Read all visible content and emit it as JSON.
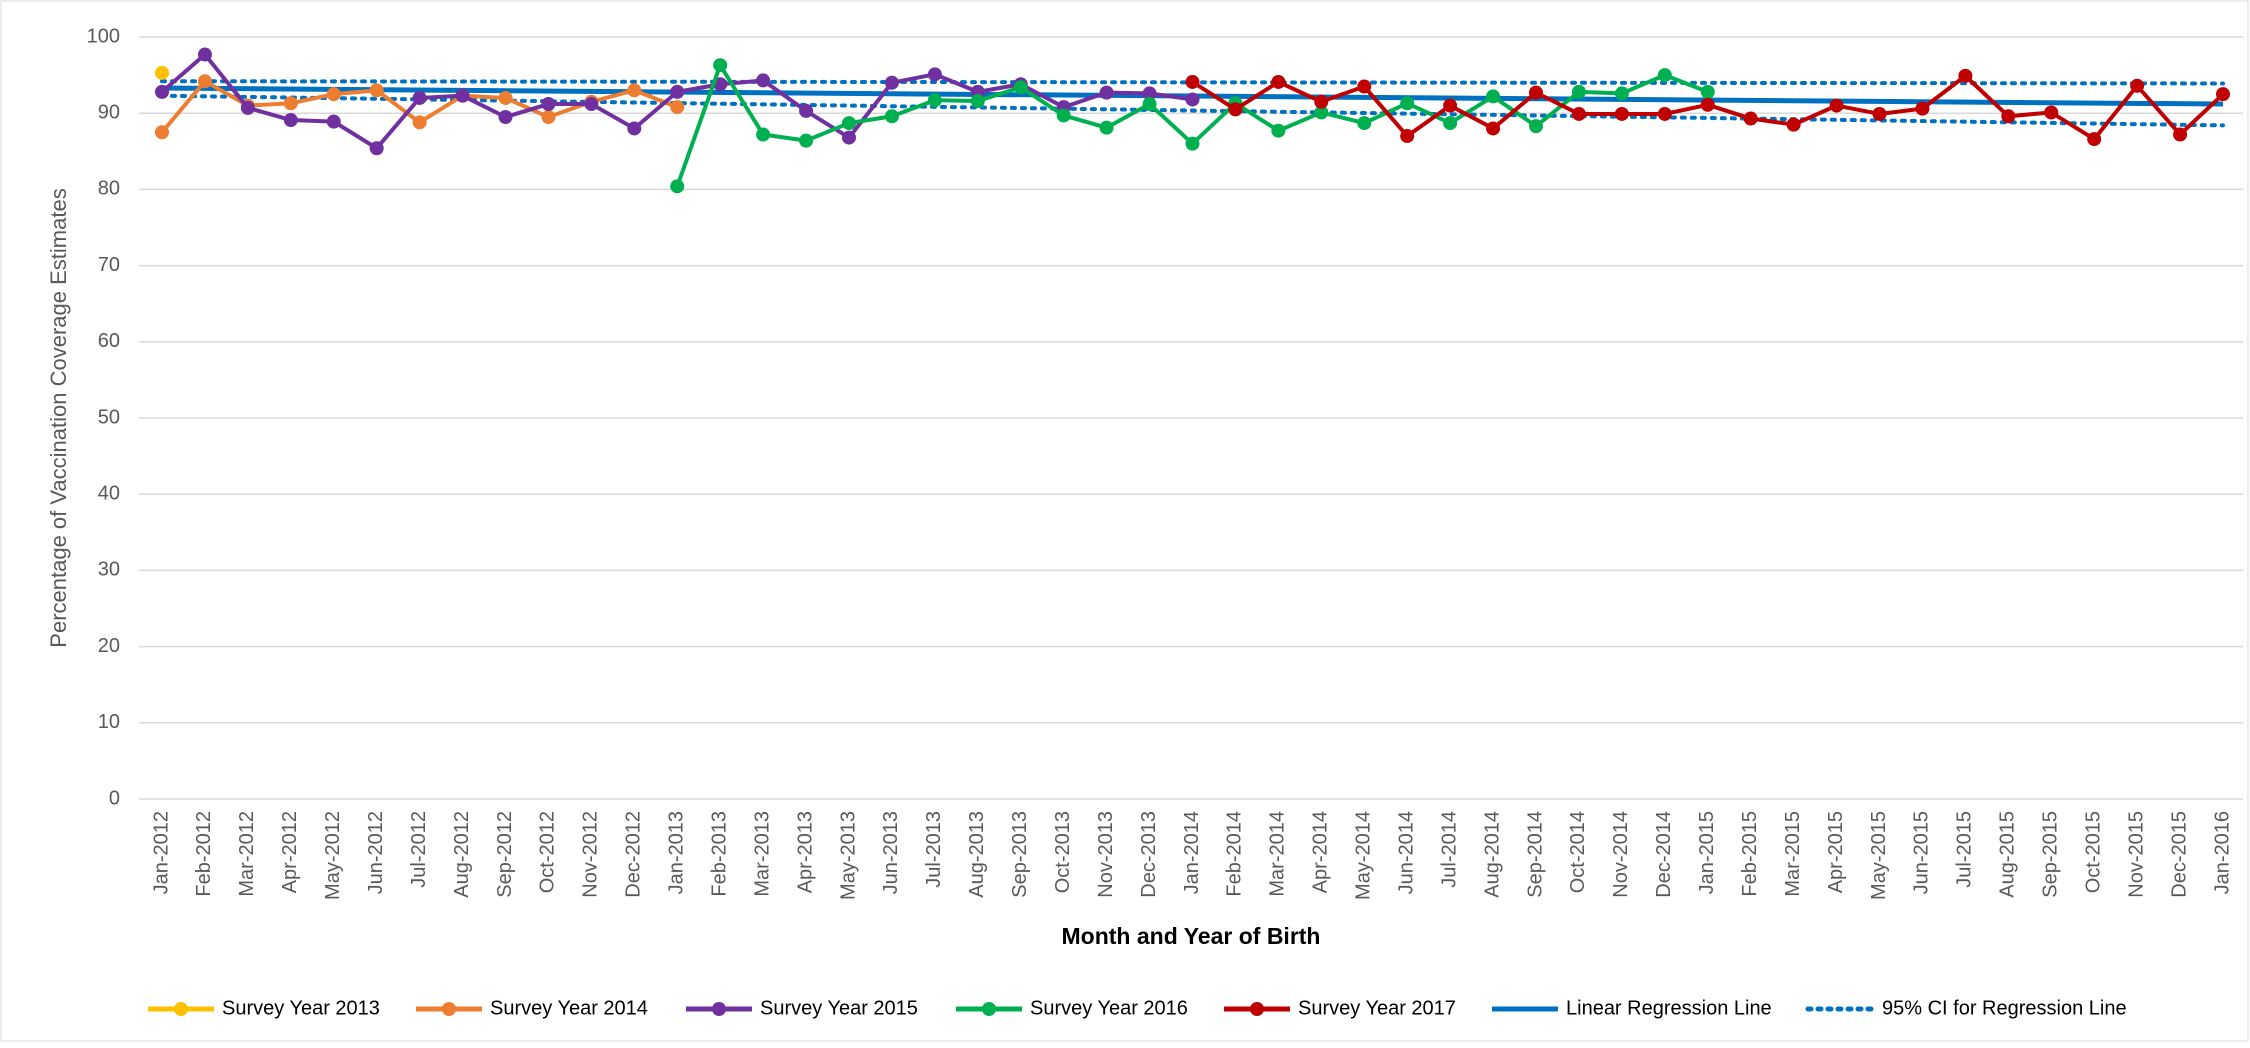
{
  "chart_data": {
    "type": "line",
    "y_axis_label": "Percentage of Vaccination Coverage Estimates",
    "x_axis_label": "Month and Year of Birth",
    "categories": [
      "Jan-2012",
      "Feb-2012",
      "Mar-2012",
      "Apr-2012",
      "May-2012",
      "Jun-2012",
      "Jul-2012",
      "Aug-2012",
      "Sep-2012",
      "Oct-2012",
      "Nov-2012",
      "Dec-2012",
      "Jan-2013",
      "Feb-2013",
      "Mar-2013",
      "Apr-2013",
      "May-2013",
      "Jun-2013",
      "Jul-2013",
      "Aug-2013",
      "Sep-2013",
      "Oct-2013",
      "Nov-2013",
      "Dec-2013",
      "Jan-2014",
      "Feb-2014",
      "Mar-2014",
      "Apr-2014",
      "May-2014",
      "Jun-2014",
      "Jul-2014",
      "Aug-2014",
      "Sep-2014",
      "Oct-2014",
      "Nov-2014",
      "Dec-2014",
      "Jan-2015",
      "Feb-2015",
      "Mar-2015",
      "Apr-2015",
      "May-2015",
      "Jun-2015",
      "Jul-2015",
      "Aug-2015",
      "Sep-2015",
      "Oct-2015",
      "Nov-2015",
      "Dec-2015",
      "Jan-2016"
    ],
    "series": [
      {
        "name": "Survey Year 2013",
        "color": "#ffc000",
        "values": [
          95.3,
          null,
          null,
          null,
          null,
          null,
          null,
          null,
          null,
          null,
          null,
          null,
          null,
          null,
          null,
          null,
          null,
          null,
          null,
          null,
          null,
          null,
          null,
          null,
          null,
          null,
          null,
          null,
          null,
          null,
          null,
          null,
          null,
          null,
          null,
          null,
          null,
          null,
          null,
          null,
          null,
          null,
          null,
          null,
          null,
          null,
          null,
          null,
          null
        ]
      },
      {
        "name": "Survey Year 2014",
        "color": "#ed7d31",
        "values": [
          87.5,
          94.2,
          91,
          91.3,
          92.5,
          93,
          88.8,
          92.3,
          92,
          89.5,
          91.5,
          93,
          90.8,
          null,
          null,
          null,
          null,
          null,
          null,
          null,
          null,
          null,
          null,
          null,
          null,
          null,
          null,
          null,
          null,
          null,
          null,
          null,
          null,
          null,
          null,
          null,
          null,
          null,
          null,
          null,
          null,
          null,
          null,
          null,
          null,
          null,
          null,
          null,
          null
        ]
      },
      {
        "name": "Survey Year 2015",
        "color": "#7030a0",
        "values": [
          92.8,
          97.7,
          90.7,
          89.1,
          88.9,
          85.4,
          92,
          92.3,
          89.5,
          91.2,
          91.2,
          88,
          92.8,
          93.8,
          94.3,
          90.3,
          86.8,
          94,
          95.1,
          92.8,
          93.8,
          90.8,
          92.7,
          92.6,
          91.8,
          null,
          null,
          null,
          null,
          null,
          null,
          null,
          null,
          null,
          null,
          null,
          null,
          null,
          null,
          null,
          null,
          null,
          null,
          null,
          null,
          null,
          null,
          null,
          null
        ]
      },
      {
        "name": "Survey Year 2016",
        "color": "#00b050",
        "values": [
          null,
          null,
          null,
          null,
          null,
          null,
          null,
          null,
          null,
          null,
          null,
          null,
          80.4,
          96.3,
          87.2,
          86.4,
          88.7,
          89.6,
          91.7,
          91.6,
          93.4,
          89.7,
          88.1,
          91.2,
          86,
          91.3,
          87.7,
          90.1,
          88.7,
          91.3,
          88.7,
          92.2,
          88.3,
          92.8,
          92.6,
          95,
          92.8,
          null,
          null,
          null,
          null,
          null,
          null,
          null,
          null,
          null,
          null,
          null,
          null
        ]
      },
      {
        "name": "Survey Year 2017",
        "color": "#c00000",
        "values": [
          null,
          null,
          null,
          null,
          null,
          null,
          null,
          null,
          null,
          null,
          null,
          null,
          null,
          null,
          null,
          null,
          null,
          null,
          null,
          null,
          null,
          null,
          null,
          null,
          94.1,
          90.5,
          94.1,
          91.5,
          93.5,
          87,
          91,
          88,
          92.7,
          89.9,
          89.9,
          89.9,
          91.1,
          89.3,
          88.5,
          91,
          89.9,
          90.6,
          94.9,
          89.6,
          90.1,
          86.6,
          93.6,
          87.2,
          92.5
        ]
      }
    ],
    "regression": {
      "name": "Linear Regression Line",
      "color": "#0070c0",
      "values": [
        93.3,
        91.2
      ]
    },
    "ci": {
      "name": "95% CI for Regression Line",
      "color": "#0070c0",
      "upper": [
        94.2,
        93.9
      ],
      "lower": [
        92.3,
        88.4
      ]
    },
    "ylim": [
      0,
      100
    ],
    "yticks": [
      0,
      10,
      20,
      30,
      40,
      50,
      60,
      70,
      80,
      90,
      100
    ],
    "grid": true,
    "legend": "bottom"
  }
}
